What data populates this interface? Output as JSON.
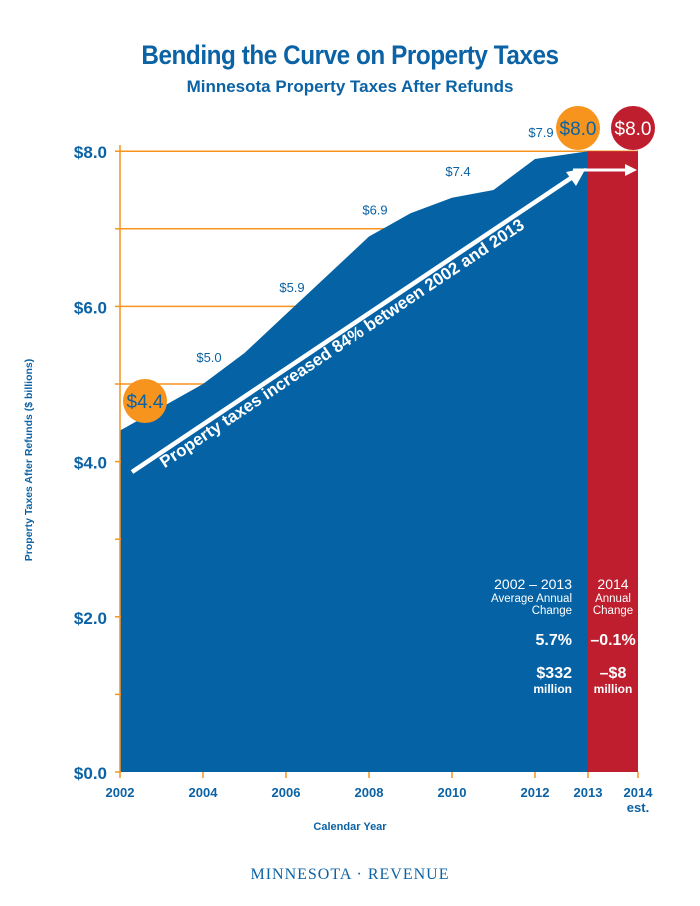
{
  "header": {
    "title": "Bending the Curve on Property Taxes",
    "subtitle": "Minnesota Property Taxes After Refunds"
  },
  "chart_data": {
    "type": "area",
    "title": "Bending the Curve on Property Taxes",
    "subtitle": "Minnesota Property Taxes After Refunds",
    "xlabel": "Calendar Year",
    "ylabel": "Property Taxes After Refunds ($ billions)",
    "ylim": [
      0,
      8
    ],
    "yticks": [
      "$0.0",
      "$2.0",
      "$4.0",
      "$6.0",
      "$8.0"
    ],
    "xticks": [
      "2002",
      "2004",
      "2006",
      "2008",
      "2010",
      "2012",
      "2013",
      "2014"
    ],
    "xtick_sub": "est.",
    "x": [
      2002,
      2003,
      2004,
      2005,
      2006,
      2007,
      2008,
      2009,
      2010,
      2011,
      2012,
      2013
    ],
    "values": [
      4.4,
      4.7,
      5.0,
      5.4,
      5.9,
      6.4,
      6.9,
      7.2,
      7.4,
      7.5,
      7.9,
      8.0
    ],
    "estimate": {
      "x": 2014,
      "value": 8.0
    },
    "data_labels": [
      {
        "x": 2004,
        "text": "$5.0"
      },
      {
        "x": 2006,
        "text": "$5.9"
      },
      {
        "x": 2008,
        "text": "$6.9"
      },
      {
        "x": 2010,
        "text": "$7.4"
      },
      {
        "x": 2012,
        "text": "$7.9"
      }
    ],
    "bubbles": [
      {
        "x": 2002,
        "text": "$4.4",
        "color": "#f7941d"
      },
      {
        "x": 2013,
        "text": "$8.0",
        "color": "#f7941d"
      },
      {
        "x": 2014,
        "text": "$8.0",
        "color": "#be1e2d"
      }
    ],
    "arrow_annotation": "Property taxes increased 84% between 2002 and 2013",
    "summary": {
      "period_title": "2002 – 2013",
      "period_sub1": "Average Annual",
      "period_sub2": "Change",
      "period_pct": "5.7%",
      "period_amount": "$332",
      "period_unit": "million",
      "est_title": "2014",
      "est_sub1": "Annual",
      "est_sub2": "Change",
      "est_pct": "–0.1%",
      "est_amount": "–$8",
      "est_unit": "million"
    },
    "colors": {
      "area": "#0563a5",
      "estimate": "#be1e2d",
      "grid": "#f7941d",
      "text": "#0b62a4"
    },
    "grid": true
  },
  "footer": {
    "brand": "MINNESOTA · REVENUE"
  }
}
